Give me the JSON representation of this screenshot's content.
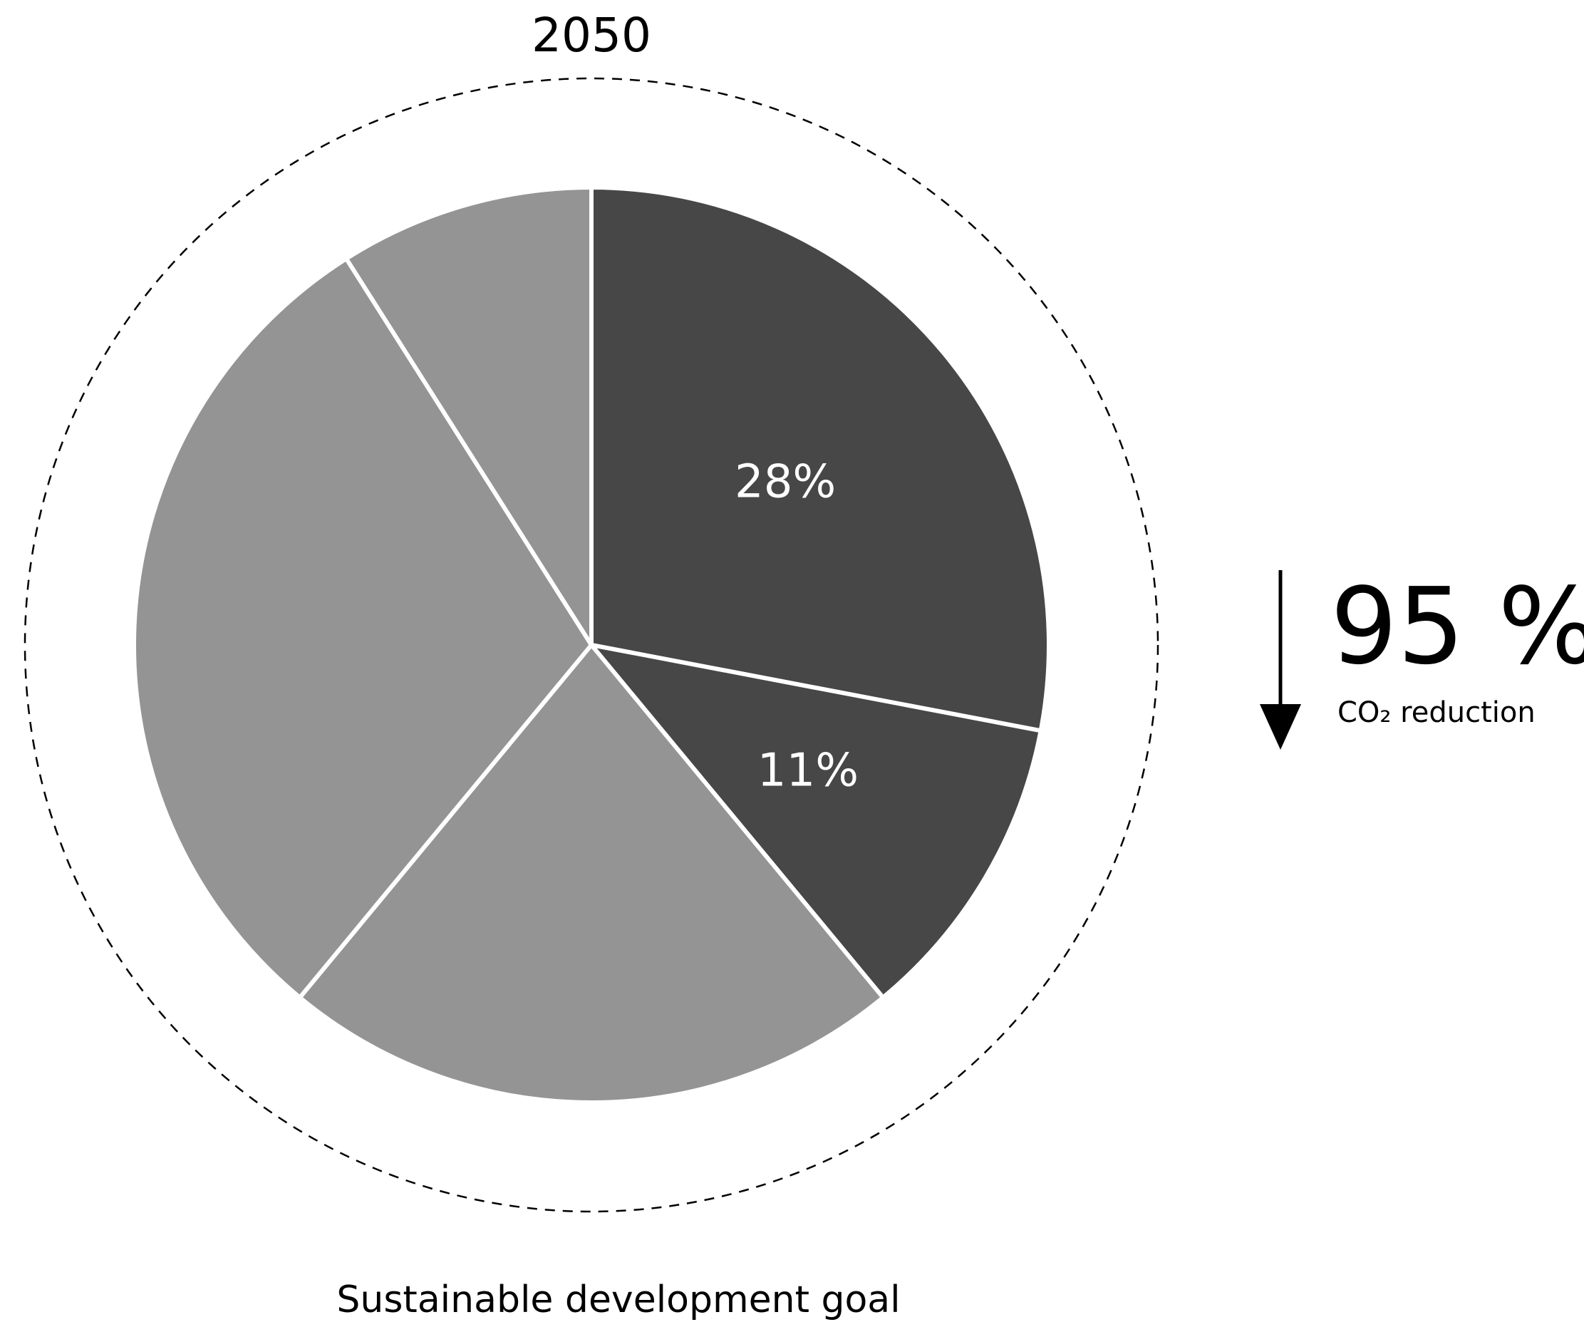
{
  "colors": {
    "background": "#ffffff",
    "dark_slice": "#474747",
    "light_slice": "#949494",
    "slice_border": "#ffffff",
    "label_on_slice": "#ffffff",
    "text": "#000000",
    "dashed_ring": "#000000"
  },
  "chart_data": {
    "type": "pie",
    "title": "2050",
    "caption": "Sustainable development goal",
    "slices": [
      {
        "value": 28,
        "label": "28%",
        "color": "#474747"
      },
      {
        "value": 11,
        "label": "11%",
        "color": "#474747"
      },
      {
        "value": 22,
        "label": "",
        "color": "#949494"
      },
      {
        "value": 30,
        "label": "",
        "color": "#949494"
      },
      {
        "value": 9,
        "label": "",
        "color": "#949494"
      }
    ],
    "start_angle_deg": 0,
    "direction": "clockwise",
    "outer_ring": "dashed",
    "legend": "none"
  },
  "callout": {
    "value": "95 %",
    "label": "CO₂ reduction",
    "icon": "arrow-down-icon"
  }
}
